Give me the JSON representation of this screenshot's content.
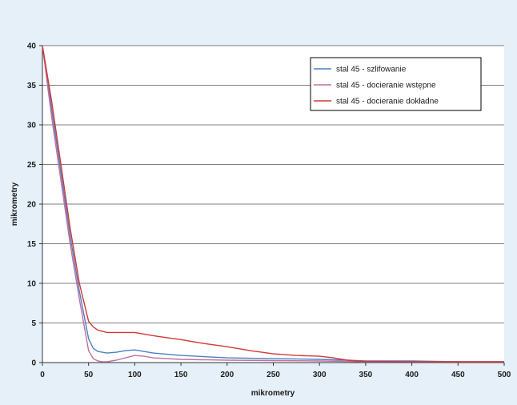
{
  "chart_data": {
    "type": "line",
    "title": "",
    "xlabel": "mikrometry",
    "ylabel": "mikrometry",
    "xlim": [
      0,
      500
    ],
    "ylim": [
      0,
      40
    ],
    "xticks": [
      "0",
      "50",
      "100",
      "150",
      "200",
      "250",
      "300",
      "350",
      "400",
      "450",
      "500"
    ],
    "yticks": [
      "0",
      "5",
      "10",
      "15",
      "20",
      "25",
      "30",
      "35",
      "40"
    ],
    "grid": "horizontal",
    "legend_position": "top-right",
    "series": [
      {
        "name": "stal 45 - szlifowanie",
        "color": "#4a7fc0",
        "x": [
          0,
          10,
          20,
          30,
          40,
          50,
          55,
          60,
          70,
          80,
          90,
          100,
          110,
          120,
          150,
          200,
          250,
          300,
          330,
          350,
          400,
          450,
          500
        ],
        "y": [
          40,
          32,
          24,
          16,
          9,
          3,
          1.8,
          1.4,
          1.2,
          1.3,
          1.5,
          1.6,
          1.4,
          1.2,
          0.9,
          0.6,
          0.5,
          0.4,
          0.3,
          0.2,
          0.2,
          0.1,
          0.1
        ]
      },
      {
        "name": "stal 45 - docieranie wstępne",
        "color": "#c070a0",
        "x": [
          0,
          10,
          20,
          30,
          40,
          50,
          55,
          60,
          65,
          70,
          80,
          90,
          100,
          110,
          120,
          150,
          200,
          250,
          300,
          330,
          350,
          400,
          450,
          500
        ],
        "y": [
          40,
          31,
          23,
          15,
          8,
          1.5,
          0.5,
          0.2,
          0.1,
          0.1,
          0.3,
          0.6,
          0.9,
          0.8,
          0.6,
          0.4,
          0.3,
          0.25,
          0.2,
          0.15,
          0.1,
          0.1,
          0.1,
          0.1
        ]
      },
      {
        "name": "stal 45 - docieranie dokładne",
        "color": "#d03838",
        "x": [
          0,
          10,
          20,
          30,
          40,
          50,
          55,
          60,
          70,
          80,
          90,
          100,
          110,
          125,
          150,
          175,
          200,
          225,
          250,
          275,
          300,
          315,
          330,
          340,
          350,
          400,
          450,
          500
        ],
        "y": [
          40,
          33,
          25,
          17,
          10,
          5.2,
          4.5,
          4.1,
          3.8,
          3.8,
          3.8,
          3.8,
          3.6,
          3.3,
          2.9,
          2.4,
          2.0,
          1.5,
          1.1,
          0.9,
          0.8,
          0.6,
          0.3,
          0.2,
          0.15,
          0.1,
          0.1,
          0.1
        ]
      }
    ]
  }
}
